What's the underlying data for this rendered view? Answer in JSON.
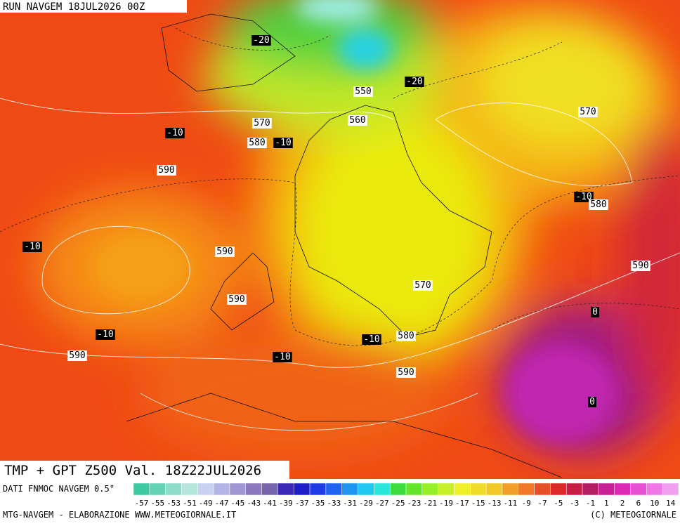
{
  "header": {
    "title": "RUN NAVGEM 18JUL2026 00Z"
  },
  "map": {
    "temperature_labels": [
      "-20",
      "-20",
      "-10",
      "-10",
      "-10",
      "-10",
      "-10",
      "-10",
      "-10",
      "0",
      "0"
    ],
    "height_labels": [
      "550",
      "560",
      "570",
      "580",
      "590",
      "570",
      "580",
      "590",
      "590",
      "570",
      "590",
      "580",
      "590",
      "590"
    ]
  },
  "footer": {
    "caption": "TMP + GPT Z500 Val. 18Z22JUL2026",
    "source": "DATI FNMOC NAVGEM 0.5°",
    "credit": "MTG-NAVGEM - ELABORAZIONE WWW.METEOGIORNALE.IT",
    "copyright": "(C) METEOGIORNALE"
  },
  "colorbar": {
    "labels": [
      "-57",
      "-55",
      "-53",
      "-51",
      "-49",
      "-47",
      "-45",
      "-43",
      "-41",
      "-39",
      "-37",
      "-35",
      "-33",
      "-31",
      "-29",
      "-27",
      "-25",
      "-23",
      "-21",
      "-19",
      "-17",
      "-15",
      "-13",
      "-11",
      "-9",
      "-7",
      "-5",
      "-3",
      "-1",
      "1",
      "2",
      "6",
      "10",
      "14"
    ],
    "colors": [
      "#3cc8a0",
      "#64d2b4",
      "#8cdcc8",
      "#b4e6dc",
      "#c8d2f0",
      "#b4b4e6",
      "#a096d2",
      "#8c78be",
      "#7864aa",
      "#3c28b4",
      "#1e1ec8",
      "#1e3ce6",
      "#1e64f0",
      "#1e96f0",
      "#1ec8f0",
      "#28e6dc",
      "#3cdc3c",
      "#64e628",
      "#96f028",
      "#c8f028",
      "#f0f028",
      "#f0dc28",
      "#f0c828",
      "#f0a028",
      "#f07828",
      "#e65028",
      "#dc2828",
      "#c81e46",
      "#b41e64",
      "#c81e96",
      "#dc28b4",
      "#e650d2",
      "#f078e6",
      "#f0a0f0"
    ]
  }
}
